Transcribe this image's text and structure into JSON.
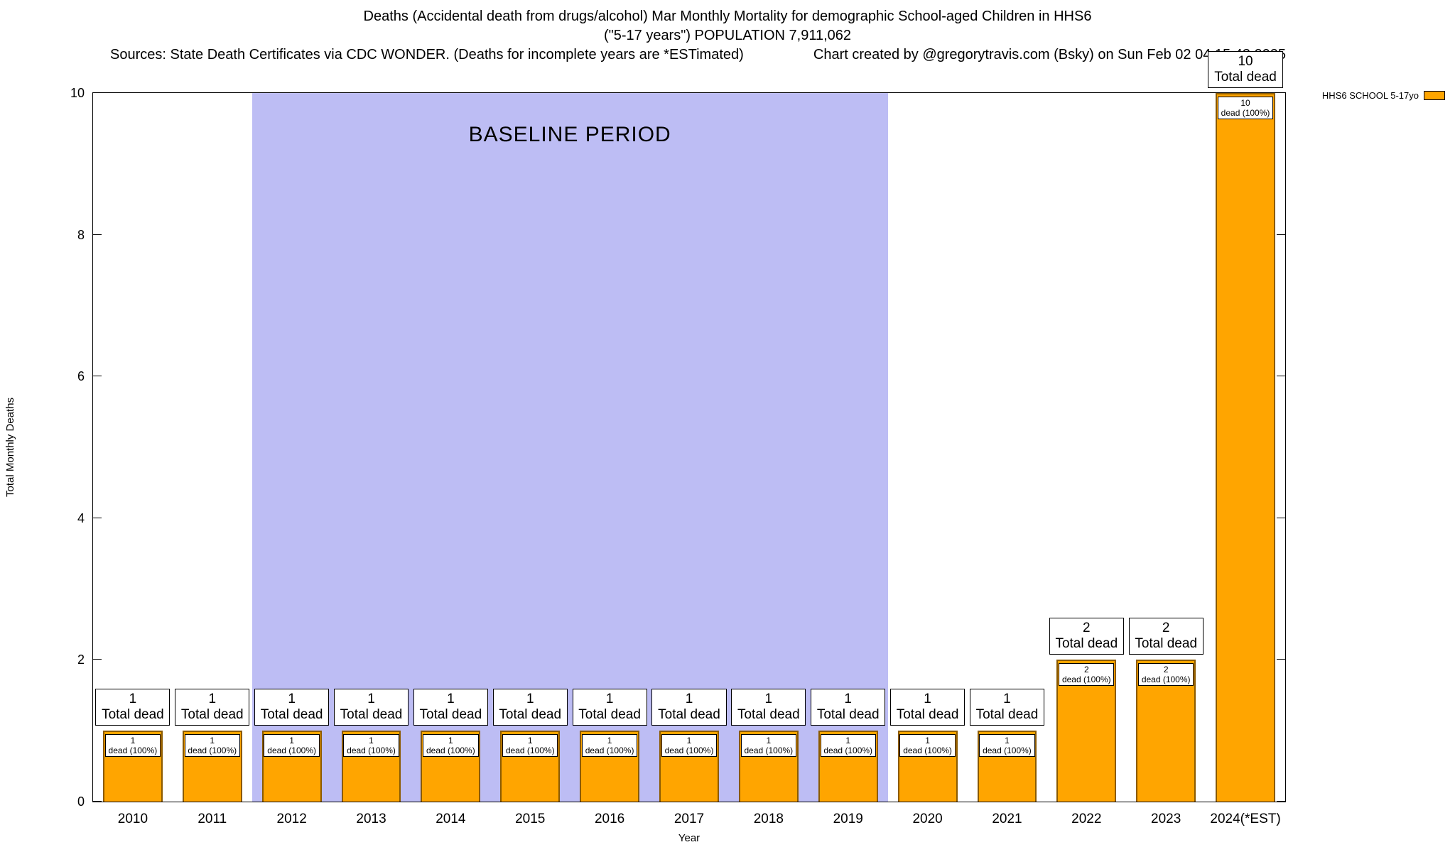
{
  "header": {
    "title_line1": "Deaths (Accidental death from drugs/alcohol) Mar Monthly Mortality for demographic School-aged Children in HHS6",
    "title_line2": "(\"5-17 years\") POPULATION 7,911,062",
    "sources": "Sources: State Death Certificates via CDC WONDER. (Deaths for incomplete years are *ESTimated)",
    "credit": "Chart created by @gregorytravis.com (Bsky) on Sun Feb 02 04:15:43 2025"
  },
  "legend": {
    "label": "HHS6 SCHOOL 5-17yo",
    "color": "#FFA500"
  },
  "chart_data": {
    "type": "bar",
    "title": "Deaths (Accidental death from drugs/alcohol) Mar Monthly Mortality for demographic School-aged Children in HHS6 (\"5-17 years\") POPULATION 7,911,062",
    "categories": [
      "2010",
      "2011",
      "2012",
      "2013",
      "2014",
      "2015",
      "2016",
      "2017",
      "2018",
      "2019",
      "2020",
      "2021",
      "2022",
      "2023",
      "2024(*EST)"
    ],
    "values": [
      1,
      1,
      1,
      1,
      1,
      1,
      1,
      1,
      1,
      1,
      1,
      1,
      2,
      2,
      10
    ],
    "xlabel": "Year",
    "ylabel": "Total Monthly Deaths",
    "ylim": [
      0,
      10
    ],
    "yticks": [
      0,
      2,
      4,
      6,
      8,
      10
    ],
    "grid": false,
    "legend_position": "top-right",
    "bar_color": "#FFA500",
    "bar_border_color": "#8b5a00",
    "annotations": {
      "top_label_line2": "Total dead",
      "inner_label_line2": "dead (100%)"
    },
    "baseline": {
      "label": "BASELINE PERIOD",
      "start_index": 2,
      "end_index": 9,
      "start_category": "2012",
      "end_category": "2019",
      "color": "#bdbdf4"
    }
  }
}
